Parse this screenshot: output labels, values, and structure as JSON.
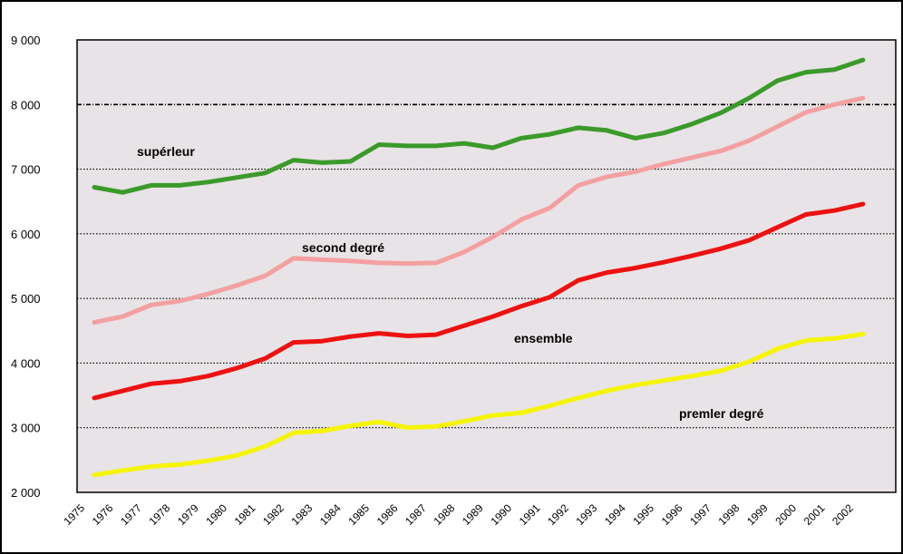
{
  "chart_data": {
    "type": "line",
    "title": "",
    "xlabel": "",
    "ylabel": "",
    "ylim": [
      2000,
      9000
    ],
    "y_ticks": [
      2000,
      3000,
      4000,
      5000,
      6000,
      7000,
      8000,
      9000
    ],
    "y_tick_labels": [
      "2 000",
      "3 000",
      "4 000",
      "5 000",
      "6 000",
      "7 000",
      "8 000",
      "9 000"
    ],
    "categories": [
      "1975",
      "1976",
      "1977",
      "1978",
      "1979",
      "1980",
      "1981",
      "1982",
      "1983",
      "1984",
      "1985",
      "1986",
      "1987",
      "1988",
      "1989",
      "1990",
      "1991",
      "1992",
      "1993",
      "1994",
      "1995",
      "1996",
      "1997",
      "1998",
      "1999",
      "2000",
      "2001",
      "2002"
    ],
    "plot_background": "#e8e3e6",
    "grid": true,
    "series": [
      {
        "name": "supérieur",
        "label_text": "supérleur",
        "color": "#3a9a2a",
        "values": [
          6720,
          6640,
          6750,
          6750,
          6800,
          6870,
          6940,
          7140,
          7100,
          7120,
          7380,
          7360,
          7360,
          7400,
          7330,
          7480,
          7540,
          7640,
          7600,
          7480,
          7560,
          7700,
          7870,
          8100,
          8370,
          8500,
          8540,
          8690
        ]
      },
      {
        "name": "second degré",
        "label_text": "second degré",
        "color": "#f4a0a0",
        "values": [
          4630,
          4720,
          4900,
          4960,
          5070,
          5200,
          5350,
          5620,
          5600,
          5580,
          5550,
          5540,
          5550,
          5720,
          5950,
          6220,
          6400,
          6750,
          6880,
          6960,
          7080,
          7180,
          7280,
          7440,
          7660,
          7880,
          8000,
          8100
        ]
      },
      {
        "name": "ensemble",
        "label_text": "ensemble",
        "color": "#ee1111",
        "values": [
          3460,
          3570,
          3680,
          3720,
          3800,
          3920,
          4070,
          4320,
          4340,
          4410,
          4460,
          4420,
          4440,
          4580,
          4720,
          4880,
          5020,
          5280,
          5400,
          5470,
          5560,
          5660,
          5770,
          5900,
          6100,
          6300,
          6360,
          6460
        ]
      },
      {
        "name": "premier degré",
        "label_text": "premler degré",
        "color": "#f5f500",
        "values": [
          2270,
          2340,
          2400,
          2430,
          2490,
          2570,
          2710,
          2920,
          2950,
          3030,
          3090,
          3000,
          3020,
          3100,
          3190,
          3230,
          3340,
          3460,
          3570,
          3660,
          3730,
          3800,
          3880,
          4020,
          4220,
          4350,
          4380,
          4450
        ]
      }
    ]
  }
}
